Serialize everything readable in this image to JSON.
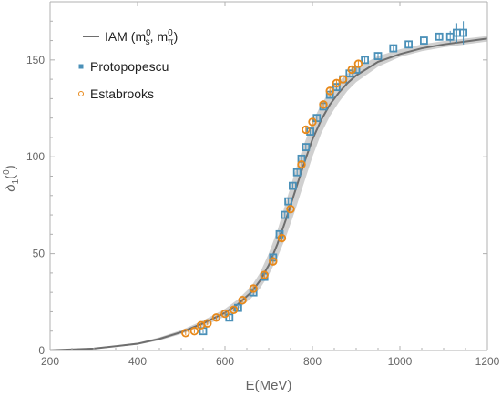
{
  "chart_data": {
    "type": "scatter",
    "xlabel": "E(MeV)",
    "ylabel": "δ1(0)",
    "xlim": [
      200,
      1200
    ],
    "ylim": [
      0,
      180
    ],
    "x_ticks": [
      200,
      400,
      600,
      800,
      1000,
      1200
    ],
    "y_ticks": [
      0,
      50,
      100,
      150
    ],
    "x_tick_labels": [
      "200",
      "400",
      "600",
      "800",
      "1000",
      "1200"
    ],
    "y_tick_labels": [
      "0",
      "50",
      "100",
      "150"
    ],
    "legend_position": "top-left",
    "colors": {
      "iam_line": "#6e6e6e",
      "iam_band": "#c8c8c8",
      "protopopescu": "#4a90b8",
      "estabrooks": "#e8891a",
      "axis": "#b0b0b0"
    },
    "legend": [
      {
        "key": "iam",
        "label": "IAM (m",
        "marker": "line"
      },
      {
        "key": "protopopescu",
        "label": "Protopopescu",
        "marker": "square"
      },
      {
        "key": "estabrooks",
        "label": "Estabrooks",
        "marker": "circle"
      }
    ],
    "series": [
      {
        "name": "IAM (m_s^0, m_π^0)",
        "kind": "line_band",
        "x": [
          200,
          300,
          400,
          450,
          500,
          550,
          600,
          630,
          660,
          680,
          700,
          720,
          740,
          760,
          780,
          800,
          820,
          840,
          860,
          880,
          900,
          950,
          1000,
          1050,
          1100,
          1150,
          1200
        ],
        "y": [
          0.1,
          1,
          3.5,
          6,
          9.5,
          14,
          19.5,
          24,
          30,
          36,
          44,
          55,
          68,
          82,
          96,
          109,
          119,
          127,
          133,
          138,
          142,
          149,
          153,
          156,
          158,
          159.5,
          161
        ],
        "band_low": [
          0,
          0.8,
          3,
          5.2,
          8.5,
          12.5,
          17.5,
          21.5,
          27,
          32,
          39,
          48,
          59,
          72,
          86,
          100,
          112,
          121,
          128,
          134,
          138.5,
          146.5,
          151.5,
          154.5,
          156.5,
          158,
          159.5
        ],
        "band_high": [
          0.2,
          1.2,
          4,
          6.8,
          10.5,
          15.5,
          21.5,
          26.5,
          33,
          40,
          50,
          62,
          77,
          92,
          106,
          118,
          127,
          134,
          139,
          143,
          146,
          152,
          155.5,
          158,
          159.8,
          161,
          162.3
        ]
      },
      {
        "name": "Protopopescu",
        "kind": "square",
        "x": [
          550,
          610,
          630,
          665,
          690,
          710,
          725,
          737,
          745,
          755,
          765,
          775,
          785,
          795,
          810,
          825,
          840,
          855,
          870,
          885,
          900,
          920,
          950,
          985,
          1020,
          1055,
          1090,
          1115,
          1130,
          1145
        ],
        "y": [
          10,
          17,
          22,
          30,
          38,
          48,
          60,
          70,
          77,
          85,
          92,
          99,
          105,
          113,
          120,
          126,
          132,
          136,
          140,
          143,
          145,
          150,
          152,
          156,
          158,
          160,
          162,
          162,
          164,
          164
        ],
        "err": [
          1,
          1,
          1,
          1.5,
          1.5,
          2,
          2,
          2,
          2,
          2,
          2,
          2,
          2,
          2,
          2,
          2,
          2,
          2,
          2,
          2,
          2,
          2,
          2,
          2,
          2,
          2,
          2,
          3,
          5,
          6
        ]
      },
      {
        "name": "Estabrooks",
        "kind": "circle",
        "x": [
          510,
          530,
          545,
          560,
          580,
          600,
          620,
          640,
          665,
          690,
          710,
          730,
          750,
          775,
          785,
          800,
          825,
          840,
          855,
          870,
          890,
          905
        ],
        "y": [
          9,
          10,
          13,
          14,
          17,
          19,
          21,
          26,
          32,
          39,
          46,
          58,
          73,
          96,
          114,
          118,
          127,
          134,
          138,
          140,
          145,
          148
        ],
        "err": [
          1,
          1,
          1,
          1,
          1,
          1,
          1,
          1,
          1.5,
          1.5,
          2,
          2,
          2,
          2,
          2,
          2,
          2,
          2,
          2,
          2,
          2,
          2
        ]
      }
    ]
  }
}
